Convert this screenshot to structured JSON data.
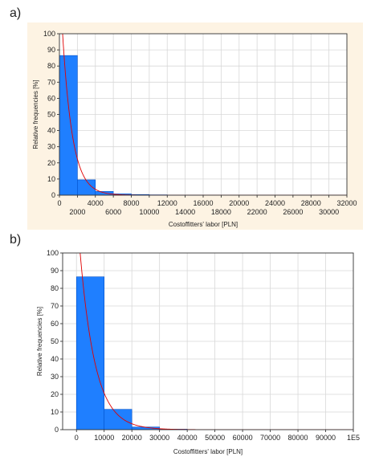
{
  "panels": [
    {
      "label": "a)"
    },
    {
      "label": "b)"
    }
  ],
  "colors": {
    "panel_bg": "#fdf3e3",
    "plot_bg": "#ffffff",
    "grid": "#d8d8d8",
    "bar": "#1f7fff",
    "bar_edge": "#0050c8",
    "curve": "#e00000"
  },
  "chart_data": [
    {
      "type": "bar",
      "xlabel": "Costoffitters' labor [PLN]",
      "ylabel": "Relative frequencies [%]",
      "xlim": [
        0,
        32000
      ],
      "ylim": [
        0,
        100
      ],
      "bin_edges": [
        0,
        2000,
        4000,
        6000,
        8000,
        10000,
        12000,
        14000,
        16000
      ],
      "values": [
        86.5,
        9.5,
        2.3,
        0.8,
        0.4,
        0.2,
        0.1,
        0.1
      ],
      "yticks": [
        "0",
        "10",
        "20",
        "30",
        "40",
        "50",
        "60",
        "70",
        "80",
        "90",
        "100"
      ],
      "xticks_upper": [
        "0",
        "4000",
        "8000",
        "12000",
        "16000",
        "20000",
        "24000",
        "28000",
        "32000"
      ],
      "xticks_lower": [
        "2000",
        "6000",
        "10000",
        "14000",
        "18000",
        "22000",
        "26000",
        "30000"
      ],
      "fitted_curve": {
        "type": "exponential",
        "peak_x": 300,
        "peak_y": 105,
        "decay_scale": 1100
      },
      "grid": true
    },
    {
      "type": "bar",
      "xlabel": "Costoffitters' labor [PLN]",
      "ylabel": "Relative frequencies [%]",
      "xlim": [
        -5000,
        100000
      ],
      "ylim": [
        0,
        100
      ],
      "bin_edges": [
        0,
        10000,
        20000,
        30000,
        40000
      ],
      "values": [
        86.5,
        11.5,
        1.5,
        0.3
      ],
      "yticks": [
        "0",
        "10",
        "20",
        "30",
        "40",
        "50",
        "60",
        "70",
        "80",
        "90",
        "100"
      ],
      "xticks": [
        "0",
        "10000",
        "20000",
        "30000",
        "40000",
        "50000",
        "60000",
        "70000",
        "80000",
        "90000",
        "1E5"
      ],
      "fitted_curve": {
        "type": "exponential",
        "peak_x": 800,
        "peak_y": 110,
        "decay_scale": 5500
      },
      "grid": true
    }
  ]
}
